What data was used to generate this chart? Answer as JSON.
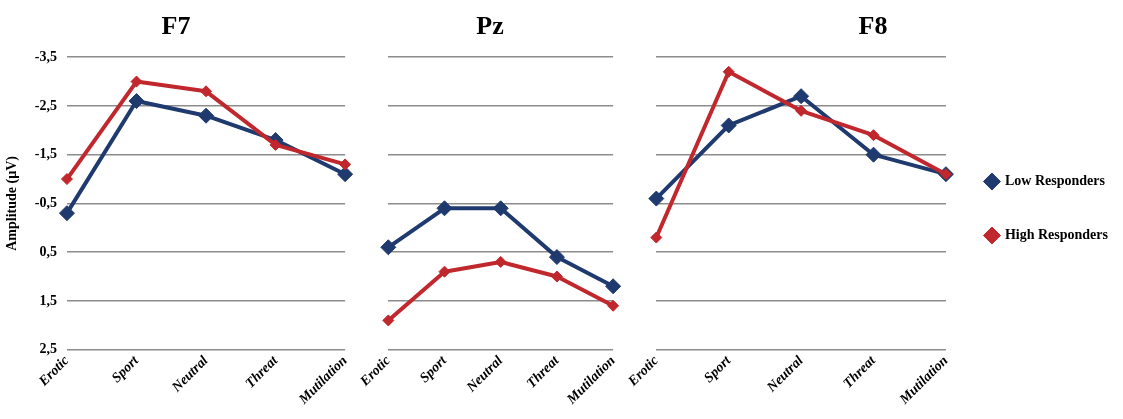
{
  "chart_data": [
    {
      "type": "line",
      "title": "F7",
      "ylabel": "Amplitude (µV)",
      "categories": [
        "Erotic",
        "Sport",
        "Neutral",
        "Threat",
        "Mutilation"
      ],
      "series": [
        {
          "color": "#1f3a6e",
          "values": [
            -0.3,
            -2.6,
            -2.3,
            -1.8,
            -1.1
          ]
        },
        {
          "color": "#c0282d",
          "values": [
            -1.0,
            -3.0,
            -2.8,
            -1.7,
            -1.3
          ]
        }
      ],
      "ylim": [
        2.5,
        -3.5
      ],
      "yticks": [
        {
          "value": -3.5,
          "label": "-3,5"
        },
        {
          "value": -2.5,
          "label": "-2,5"
        },
        {
          "value": -1.5,
          "label": "-1,5"
        },
        {
          "value": -0.5,
          "label": "-0,5"
        },
        {
          "value": 0.5,
          "label": "0,5"
        },
        {
          "value": 1.5,
          "label": "1,5"
        },
        {
          "value": 2.5,
          "label": "2,5"
        }
      ],
      "grid": "y",
      "marker": "diamond",
      "legend": false
    },
    {
      "type": "line",
      "title": "Pz",
      "categories": [
        "Erotic",
        "Sport",
        "Neutral",
        "Threat",
        "Mutilation"
      ],
      "series": [
        {
          "color": "#1f3a6e",
          "values": [
            0.4,
            -0.4,
            -0.4,
            0.6,
            1.2
          ]
        },
        {
          "color": "#c0282d",
          "values": [
            1.9,
            0.9,
            0.7,
            1.0,
            1.6
          ]
        }
      ],
      "ylim": [
        2.5,
        -3.5
      ],
      "yticks": [
        {
          "value": -3.5,
          "label": null
        },
        {
          "value": -2.5,
          "label": null
        },
        {
          "value": -1.5,
          "label": null
        },
        {
          "value": -0.5,
          "label": null
        },
        {
          "value": 0.5,
          "label": null
        },
        {
          "value": 1.5,
          "label": null
        },
        {
          "value": 2.5,
          "label": null
        }
      ],
      "grid": "y",
      "marker": "diamond",
      "legend": false,
      "tick_labels": "x"
    },
    {
      "type": "line",
      "title": "F8",
      "categories": [
        "Erotic",
        "Sport",
        "Neutral",
        "Threat",
        "Mutilation"
      ],
      "series": [
        {
          "name": "Low Responders",
          "color": "#1f3a6e",
          "values": [
            -0.6,
            -2.1,
            -2.7,
            -1.5,
            -1.1
          ]
        },
        {
          "name": "High Responders",
          "color": "#c0282d",
          "values": [
            0.2,
            -3.2,
            -2.4,
            -1.9,
            -1.1
          ]
        }
      ],
      "ylim": [
        2.5,
        -3.5
      ],
      "yticks": [
        {
          "value": -3.5,
          "label": null
        },
        {
          "value": -2.5,
          "label": null
        },
        {
          "value": -1.5,
          "label": null
        },
        {
          "value": -0.5,
          "label": null
        },
        {
          "value": 0.5,
          "label": null
        },
        {
          "value": 1.5,
          "label": null
        },
        {
          "value": 2.5,
          "label": null
        }
      ],
      "grid": "y",
      "marker": "diamond",
      "legend": "right",
      "tick_labels": "x"
    }
  ]
}
